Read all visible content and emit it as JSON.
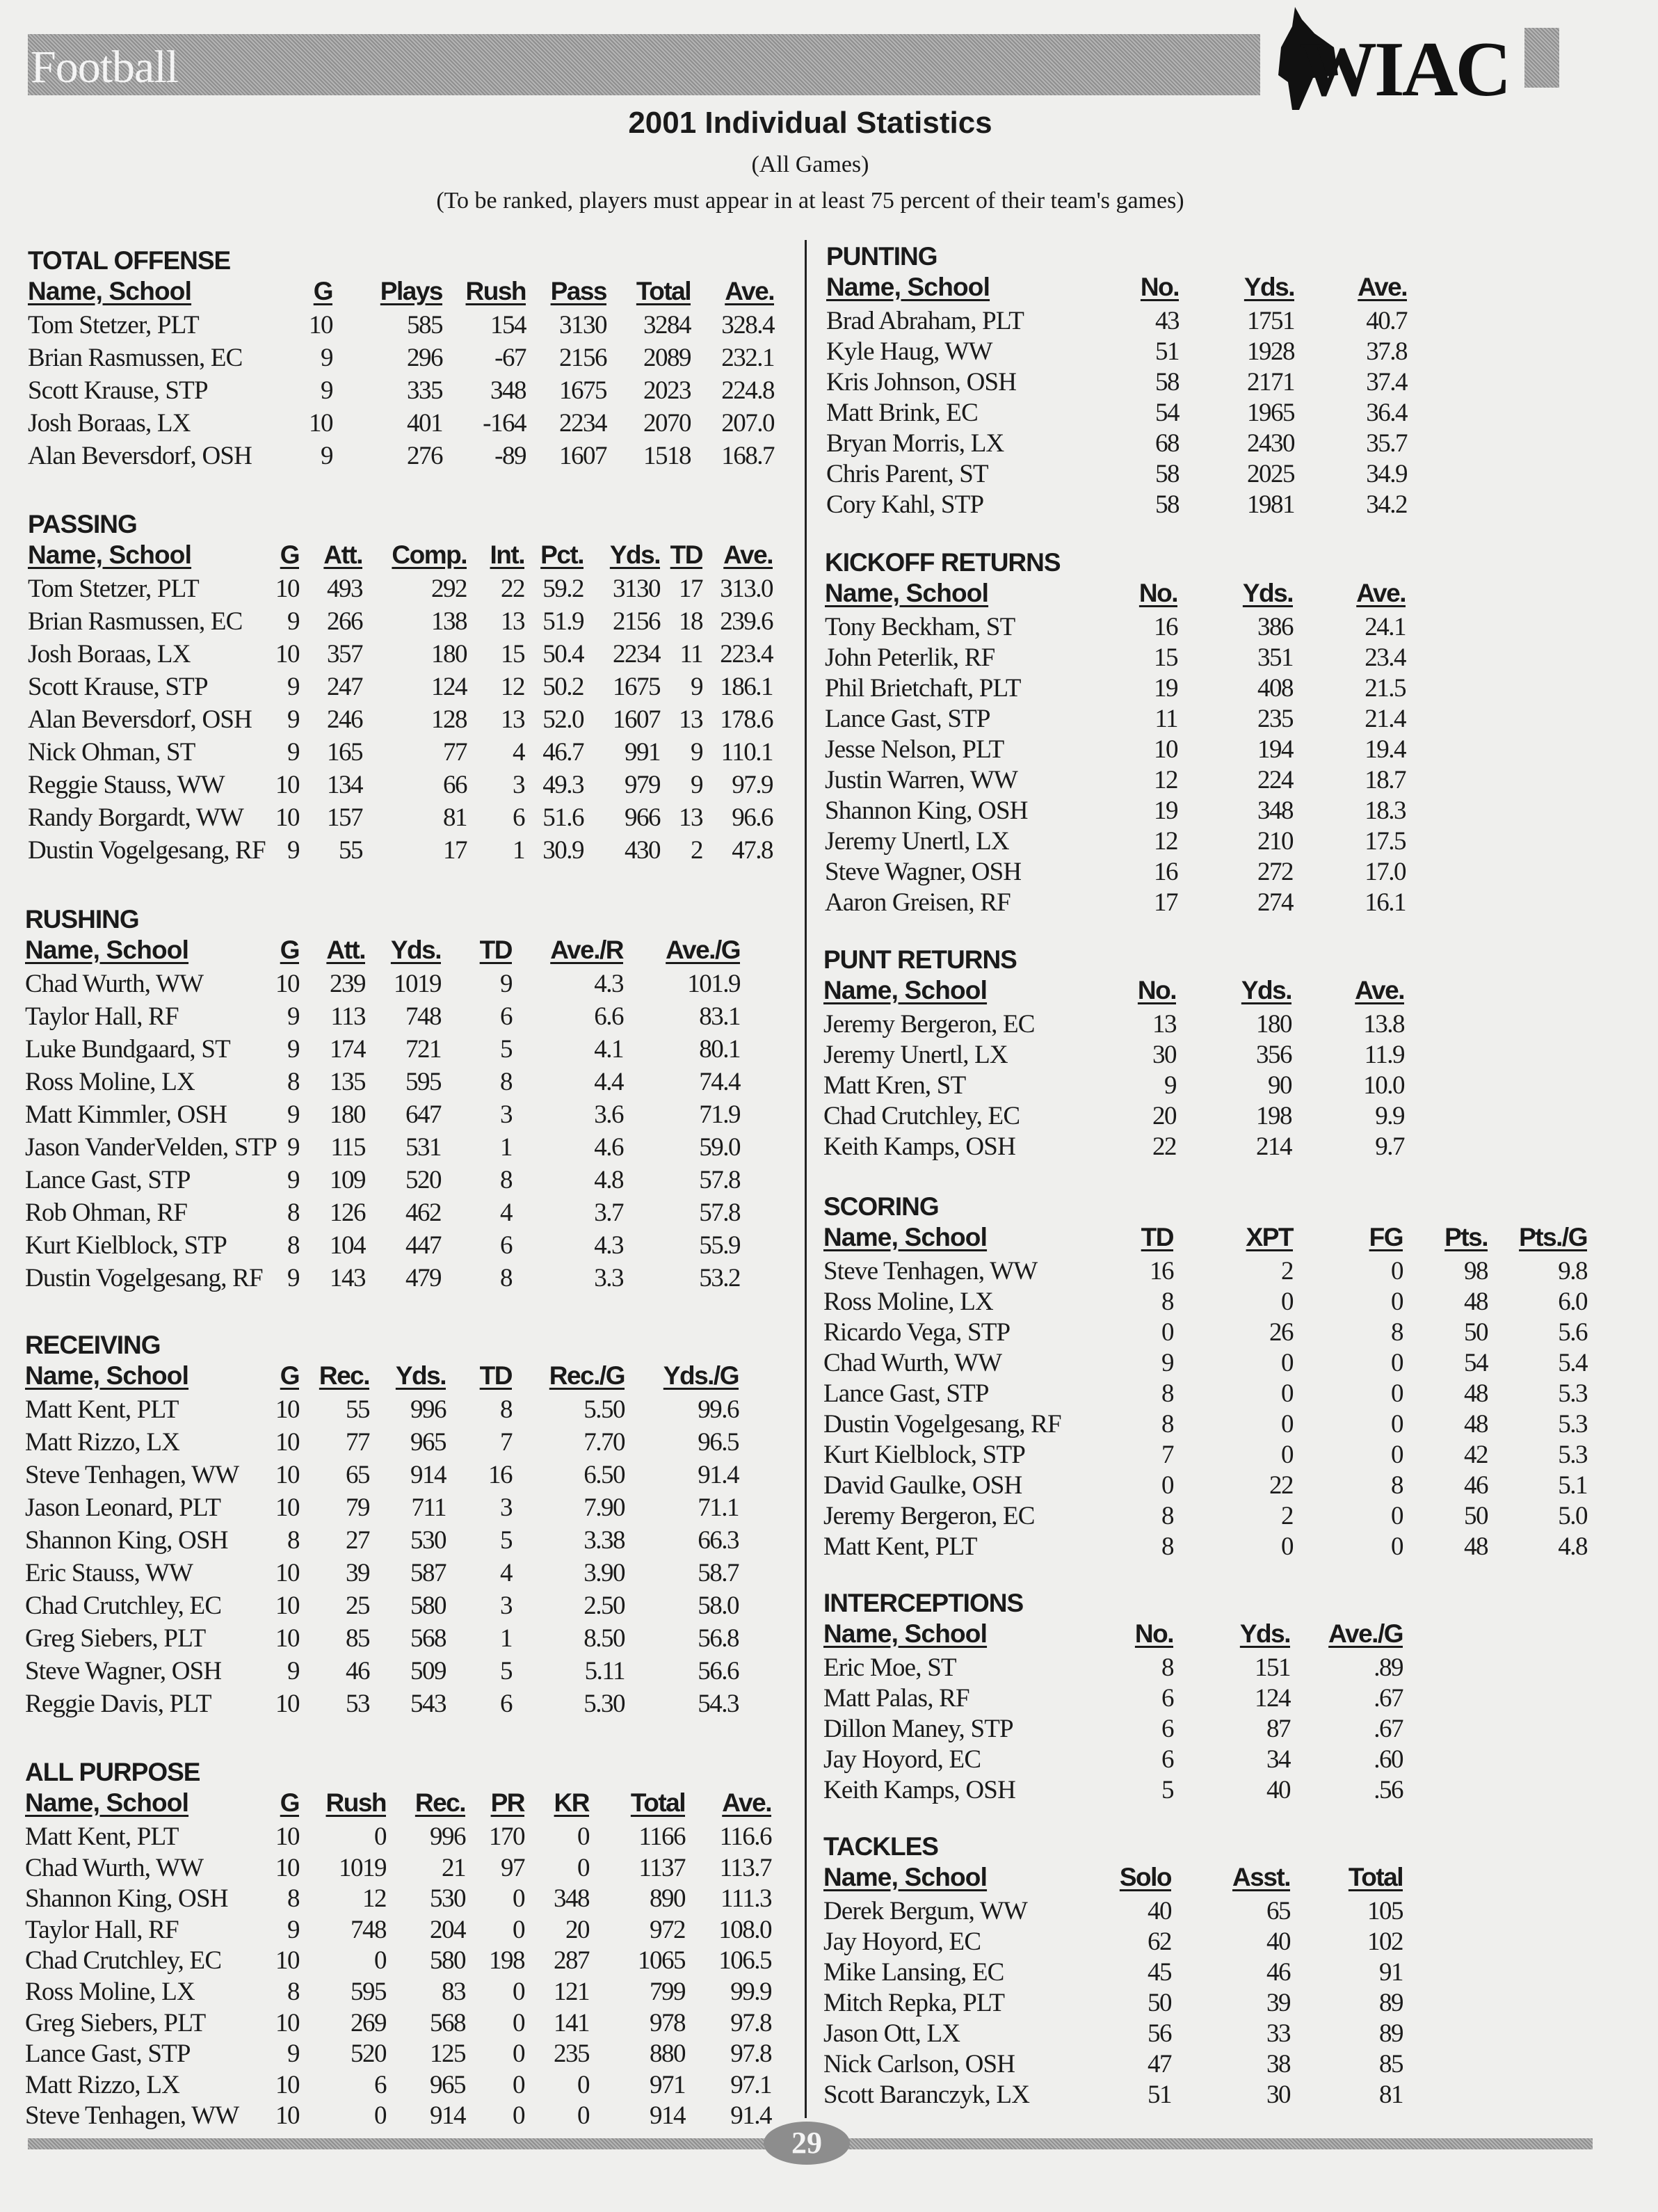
{
  "header": {
    "banner_title": "Football",
    "logo_text": "WIAC",
    "title": "2001 Individual Statistics",
    "subtitle": "(All Games)",
    "note": "(To be ranked, players must appear in at least 75 percent of their team's games)"
  },
  "sections": [
    {
      "title": "TOTAL OFFENSE",
      "columns": [
        "Name, School",
        "G",
        "Plays",
        "Rush",
        "Pass",
        "Total",
        "Ave."
      ],
      "rows": [
        [
          "Tom Stetzer, PLT",
          "10",
          "585",
          "154",
          "3130",
          "3284",
          "328.4"
        ],
        [
          "Brian Rasmussen, EC",
          "9",
          "296",
          "-67",
          "2156",
          "2089",
          "232.1"
        ],
        [
          "Scott Krause, STP",
          "9",
          "335",
          "348",
          "1675",
          "2023",
          "224.8"
        ],
        [
          "Josh Boraas, LX",
          "10",
          "401",
          "-164",
          "2234",
          "2070",
          "207.0"
        ],
        [
          "Alan Beversdorf, OSH",
          "9",
          "276",
          "-89",
          "1607",
          "1518",
          "168.7"
        ]
      ]
    },
    {
      "title": "PASSING",
      "columns": [
        "Name, School",
        "G",
        "Att.",
        "Comp.",
        "Int.",
        "Pct.",
        "Yds.",
        "TD",
        "Ave."
      ],
      "rows": [
        [
          "Tom Stetzer, PLT",
          "10",
          "493",
          "292",
          "22",
          "59.2",
          "3130",
          "17",
          "313.0"
        ],
        [
          "Brian Rasmussen, EC",
          "9",
          "266",
          "138",
          "13",
          "51.9",
          "2156",
          "18",
          "239.6"
        ],
        [
          "Josh Boraas, LX",
          "10",
          "357",
          "180",
          "15",
          "50.4",
          "2234",
          "11",
          "223.4"
        ],
        [
          "Scott Krause, STP",
          "9",
          "247",
          "124",
          "12",
          "50.2",
          "1675",
          "9",
          "186.1"
        ],
        [
          "Alan Beversdorf, OSH",
          "9",
          "246",
          "128",
          "13",
          "52.0",
          "1607",
          "13",
          "178.6"
        ],
        [
          "Nick Ohman, ST",
          "9",
          "165",
          "77",
          "4",
          "46.7",
          "991",
          "9",
          "110.1"
        ],
        [
          "Reggie Stauss, WW",
          "10",
          "134",
          "66",
          "3",
          "49.3",
          "979",
          "9",
          "97.9"
        ],
        [
          "Randy Borgardt, WW",
          "10",
          "157",
          "81",
          "6",
          "51.6",
          "966",
          "13",
          "96.6"
        ],
        [
          "Dustin Vogelgesang, RF",
          "9",
          "55",
          "17",
          "1",
          "30.9",
          "430",
          "2",
          "47.8"
        ]
      ]
    },
    {
      "title": "RUSHING",
      "columns": [
        "Name, School",
        "G",
        "Att.",
        "Yds.",
        "TD",
        "Ave./R",
        "Ave./G"
      ],
      "rows": [
        [
          "Chad Wurth, WW",
          "10",
          "239",
          "1019",
          "9",
          "4.3",
          "101.9"
        ],
        [
          "Taylor Hall, RF",
          "9",
          "113",
          "748",
          "6",
          "6.6",
          "83.1"
        ],
        [
          "Luke Bundgaard, ST",
          "9",
          "174",
          "721",
          "5",
          "4.1",
          "80.1"
        ],
        [
          "Ross Moline, LX",
          "8",
          "135",
          "595",
          "8",
          "4.4",
          "74.4"
        ],
        [
          "Matt Kimmler, OSH",
          "9",
          "180",
          "647",
          "3",
          "3.6",
          "71.9"
        ],
        [
          "Jason VanderVelden, STP",
          "9",
          "115",
          "531",
          "1",
          "4.6",
          "59.0"
        ],
        [
          "Lance Gast, STP",
          "9",
          "109",
          "520",
          "8",
          "4.8",
          "57.8"
        ],
        [
          "Rob Ohman, RF",
          "8",
          "126",
          "462",
          "4",
          "3.7",
          "57.8"
        ],
        [
          "Kurt Kielblock, STP",
          "8",
          "104",
          "447",
          "6",
          "4.3",
          "55.9"
        ],
        [
          "Dustin Vogelgesang, RF",
          "9",
          "143",
          "479",
          "8",
          "3.3",
          "53.2"
        ]
      ]
    },
    {
      "title": "RECEIVING",
      "columns": [
        "Name, School",
        "G",
        "Rec.",
        "Yds.",
        "TD",
        "Rec./G",
        "Yds./G"
      ],
      "rows": [
        [
          "Matt Kent, PLT",
          "10",
          "55",
          "996",
          "8",
          "5.50",
          "99.6"
        ],
        [
          "Matt Rizzo, LX",
          "10",
          "77",
          "965",
          "7",
          "7.70",
          "96.5"
        ],
        [
          "Steve Tenhagen, WW",
          "10",
          "65",
          "914",
          "16",
          "6.50",
          "91.4"
        ],
        [
          "Jason Leonard, PLT",
          "10",
          "79",
          "711",
          "3",
          "7.90",
          "71.1"
        ],
        [
          "Shannon King, OSH",
          "8",
          "27",
          "530",
          "5",
          "3.38",
          "66.3"
        ],
        [
          "Eric Stauss, WW",
          "10",
          "39",
          "587",
          "4",
          "3.90",
          "58.7"
        ],
        [
          "Chad Crutchley, EC",
          "10",
          "25",
          "580",
          "3",
          "2.50",
          "58.0"
        ],
        [
          "Greg Siebers, PLT",
          "10",
          "85",
          "568",
          "1",
          "8.50",
          "56.8"
        ],
        [
          "Steve Wagner, OSH",
          "9",
          "46",
          "509",
          "5",
          "5.11",
          "56.6"
        ],
        [
          "Reggie Davis, PLT",
          "10",
          "53",
          "543",
          "6",
          "5.30",
          "54.3"
        ]
      ]
    },
    {
      "title": "ALL PURPOSE",
      "columns": [
        "Name, School",
        "G",
        "Rush",
        "Rec.",
        "PR",
        "KR",
        "Total",
        "Ave."
      ],
      "rows": [
        [
          "Matt Kent, PLT",
          "10",
          "0",
          "996",
          "170",
          "0",
          "1166",
          "116.6"
        ],
        [
          "Chad Wurth, WW",
          "10",
          "1019",
          "21",
          "97",
          "0",
          "1137",
          "113.7"
        ],
        [
          "Shannon King, OSH",
          "8",
          "12",
          "530",
          "0",
          "348",
          "890",
          "111.3"
        ],
        [
          "Taylor Hall, RF",
          "9",
          "748",
          "204",
          "0",
          "20",
          "972",
          "108.0"
        ],
        [
          "Chad Crutchley, EC",
          "10",
          "0",
          "580",
          "198",
          "287",
          "1065",
          "106.5"
        ],
        [
          "Ross Moline, LX",
          "8",
          "595",
          "83",
          "0",
          "121",
          "799",
          "99.9"
        ],
        [
          "Greg Siebers, PLT",
          "10",
          "269",
          "568",
          "0",
          "141",
          "978",
          "97.8"
        ],
        [
          "Lance Gast, STP",
          "9",
          "520",
          "125",
          "0",
          "235",
          "880",
          "97.8"
        ],
        [
          "Matt Rizzo, LX",
          "10",
          "6",
          "965",
          "0",
          "0",
          "971",
          "97.1"
        ],
        [
          "Steve Tenhagen, WW",
          "10",
          "0",
          "914",
          "0",
          "0",
          "914",
          "91.4"
        ]
      ]
    },
    {
      "title": "PUNTING",
      "columns": [
        "Name, School",
        "No.",
        "Yds.",
        "Ave."
      ],
      "rows": [
        [
          "Brad Abraham, PLT",
          "43",
          "1751",
          "40.7"
        ],
        [
          "Kyle Haug, WW",
          "51",
          "1928",
          "37.8"
        ],
        [
          "Kris Johnson, OSH",
          "58",
          "2171",
          "37.4"
        ],
        [
          "Matt Brink, EC",
          "54",
          "1965",
          "36.4"
        ],
        [
          "Bryan Morris, LX",
          "68",
          "2430",
          "35.7"
        ],
        [
          "Chris Parent, ST",
          "58",
          "2025",
          "34.9"
        ],
        [
          "Cory Kahl, STP",
          "58",
          "1981",
          "34.2"
        ]
      ]
    },
    {
      "title": "KICKOFF RETURNS",
      "columns": [
        "Name, School",
        "No.",
        "Yds.",
        "Ave."
      ],
      "rows": [
        [
          "Tony Beckham, ST",
          "16",
          "386",
          "24.1"
        ],
        [
          "John Peterlik, RF",
          "15",
          "351",
          "23.4"
        ],
        [
          "Phil Brietchaft, PLT",
          "19",
          "408",
          "21.5"
        ],
        [
          "Lance Gast, STP",
          "11",
          "235",
          "21.4"
        ],
        [
          "Jesse Nelson, PLT",
          "10",
          "194",
          "19.4"
        ],
        [
          "Justin Warren, WW",
          "12",
          "224",
          "18.7"
        ],
        [
          "Shannon King, OSH",
          "19",
          "348",
          "18.3"
        ],
        [
          "Jeremy Unertl, LX",
          "12",
          "210",
          "17.5"
        ],
        [
          "Steve Wagner, OSH",
          "16",
          "272",
          "17.0"
        ],
        [
          "Aaron Greisen, RF",
          "17",
          "274",
          "16.1"
        ]
      ]
    },
    {
      "title": "PUNT RETURNS",
      "columns": [
        "Name, School",
        "No.",
        "Yds.",
        "Ave."
      ],
      "rows": [
        [
          "Jeremy Bergeron, EC",
          "13",
          "180",
          "13.8"
        ],
        [
          "Jeremy Unertl, LX",
          "30",
          "356",
          "11.9"
        ],
        [
          "Matt Kren, ST",
          "9",
          "90",
          "10.0"
        ],
        [
          "Chad Crutchley, EC",
          "20",
          "198",
          "9.9"
        ],
        [
          "Keith Kamps, OSH",
          "22",
          "214",
          "9.7"
        ]
      ]
    },
    {
      "title": "SCORING",
      "columns": [
        "Name, School",
        "TD",
        "XPT",
        "FG",
        "Pts.",
        "Pts./G"
      ],
      "rows": [
        [
          "Steve Tenhagen, WW",
          "16",
          "2",
          "0",
          "98",
          "9.8"
        ],
        [
          "Ross Moline, LX",
          "8",
          "0",
          "0",
          "48",
          "6.0"
        ],
        [
          "Ricardo Vega, STP",
          "0",
          "26",
          "8",
          "50",
          "5.6"
        ],
        [
          "Chad Wurth, WW",
          "9",
          "0",
          "0",
          "54",
          "5.4"
        ],
        [
          "Lance Gast, STP",
          "8",
          "0",
          "0",
          "48",
          "5.3"
        ],
        [
          "Dustin Vogelgesang, RF",
          "8",
          "0",
          "0",
          "48",
          "5.3"
        ],
        [
          "Kurt Kielblock, STP",
          "7",
          "0",
          "0",
          "42",
          "5.3"
        ],
        [
          "David Gaulke, OSH",
          "0",
          "22",
          "8",
          "46",
          "5.1"
        ],
        [
          "Jeremy Bergeron, EC",
          "8",
          "2",
          "0",
          "50",
          "5.0"
        ],
        [
          "Matt Kent, PLT",
          "8",
          "0",
          "0",
          "48",
          "4.8"
        ]
      ]
    },
    {
      "title": "INTERCEPTIONS",
      "columns": [
        "Name, School",
        "No.",
        "Yds.",
        "Ave./G"
      ],
      "rows": [
        [
          "Eric Moe, ST",
          "8",
          "151",
          ".89"
        ],
        [
          "Matt Palas, RF",
          "6",
          "124",
          ".67"
        ],
        [
          "Dillon Maney, STP",
          "6",
          "87",
          ".67"
        ],
        [
          "Jay Hoyord, EC",
          "6",
          "34",
          ".60"
        ],
        [
          "Keith Kamps, OSH",
          "5",
          "40",
          ".56"
        ]
      ]
    },
    {
      "title": "TACKLES",
      "columns": [
        "Name, School",
        "Solo",
        "Asst.",
        "Total"
      ],
      "rows": [
        [
          "Derek Bergum, WW",
          "40",
          "65",
          "105"
        ],
        [
          "Jay Hoyord, EC",
          "62",
          "40",
          "102"
        ],
        [
          "Mike Lansing, EC",
          "45",
          "46",
          "91"
        ],
        [
          "Mitch Repka, PLT",
          "50",
          "39",
          "89"
        ],
        [
          "Jason Ott, LX",
          "56",
          "33",
          "89"
        ],
        [
          "Nick Carlson, OSH",
          "47",
          "38",
          "85"
        ],
        [
          "Scott Baranczyk, LX",
          "51",
          "30",
          "81"
        ]
      ]
    }
  ],
  "footer": {
    "page_number": "29"
  }
}
